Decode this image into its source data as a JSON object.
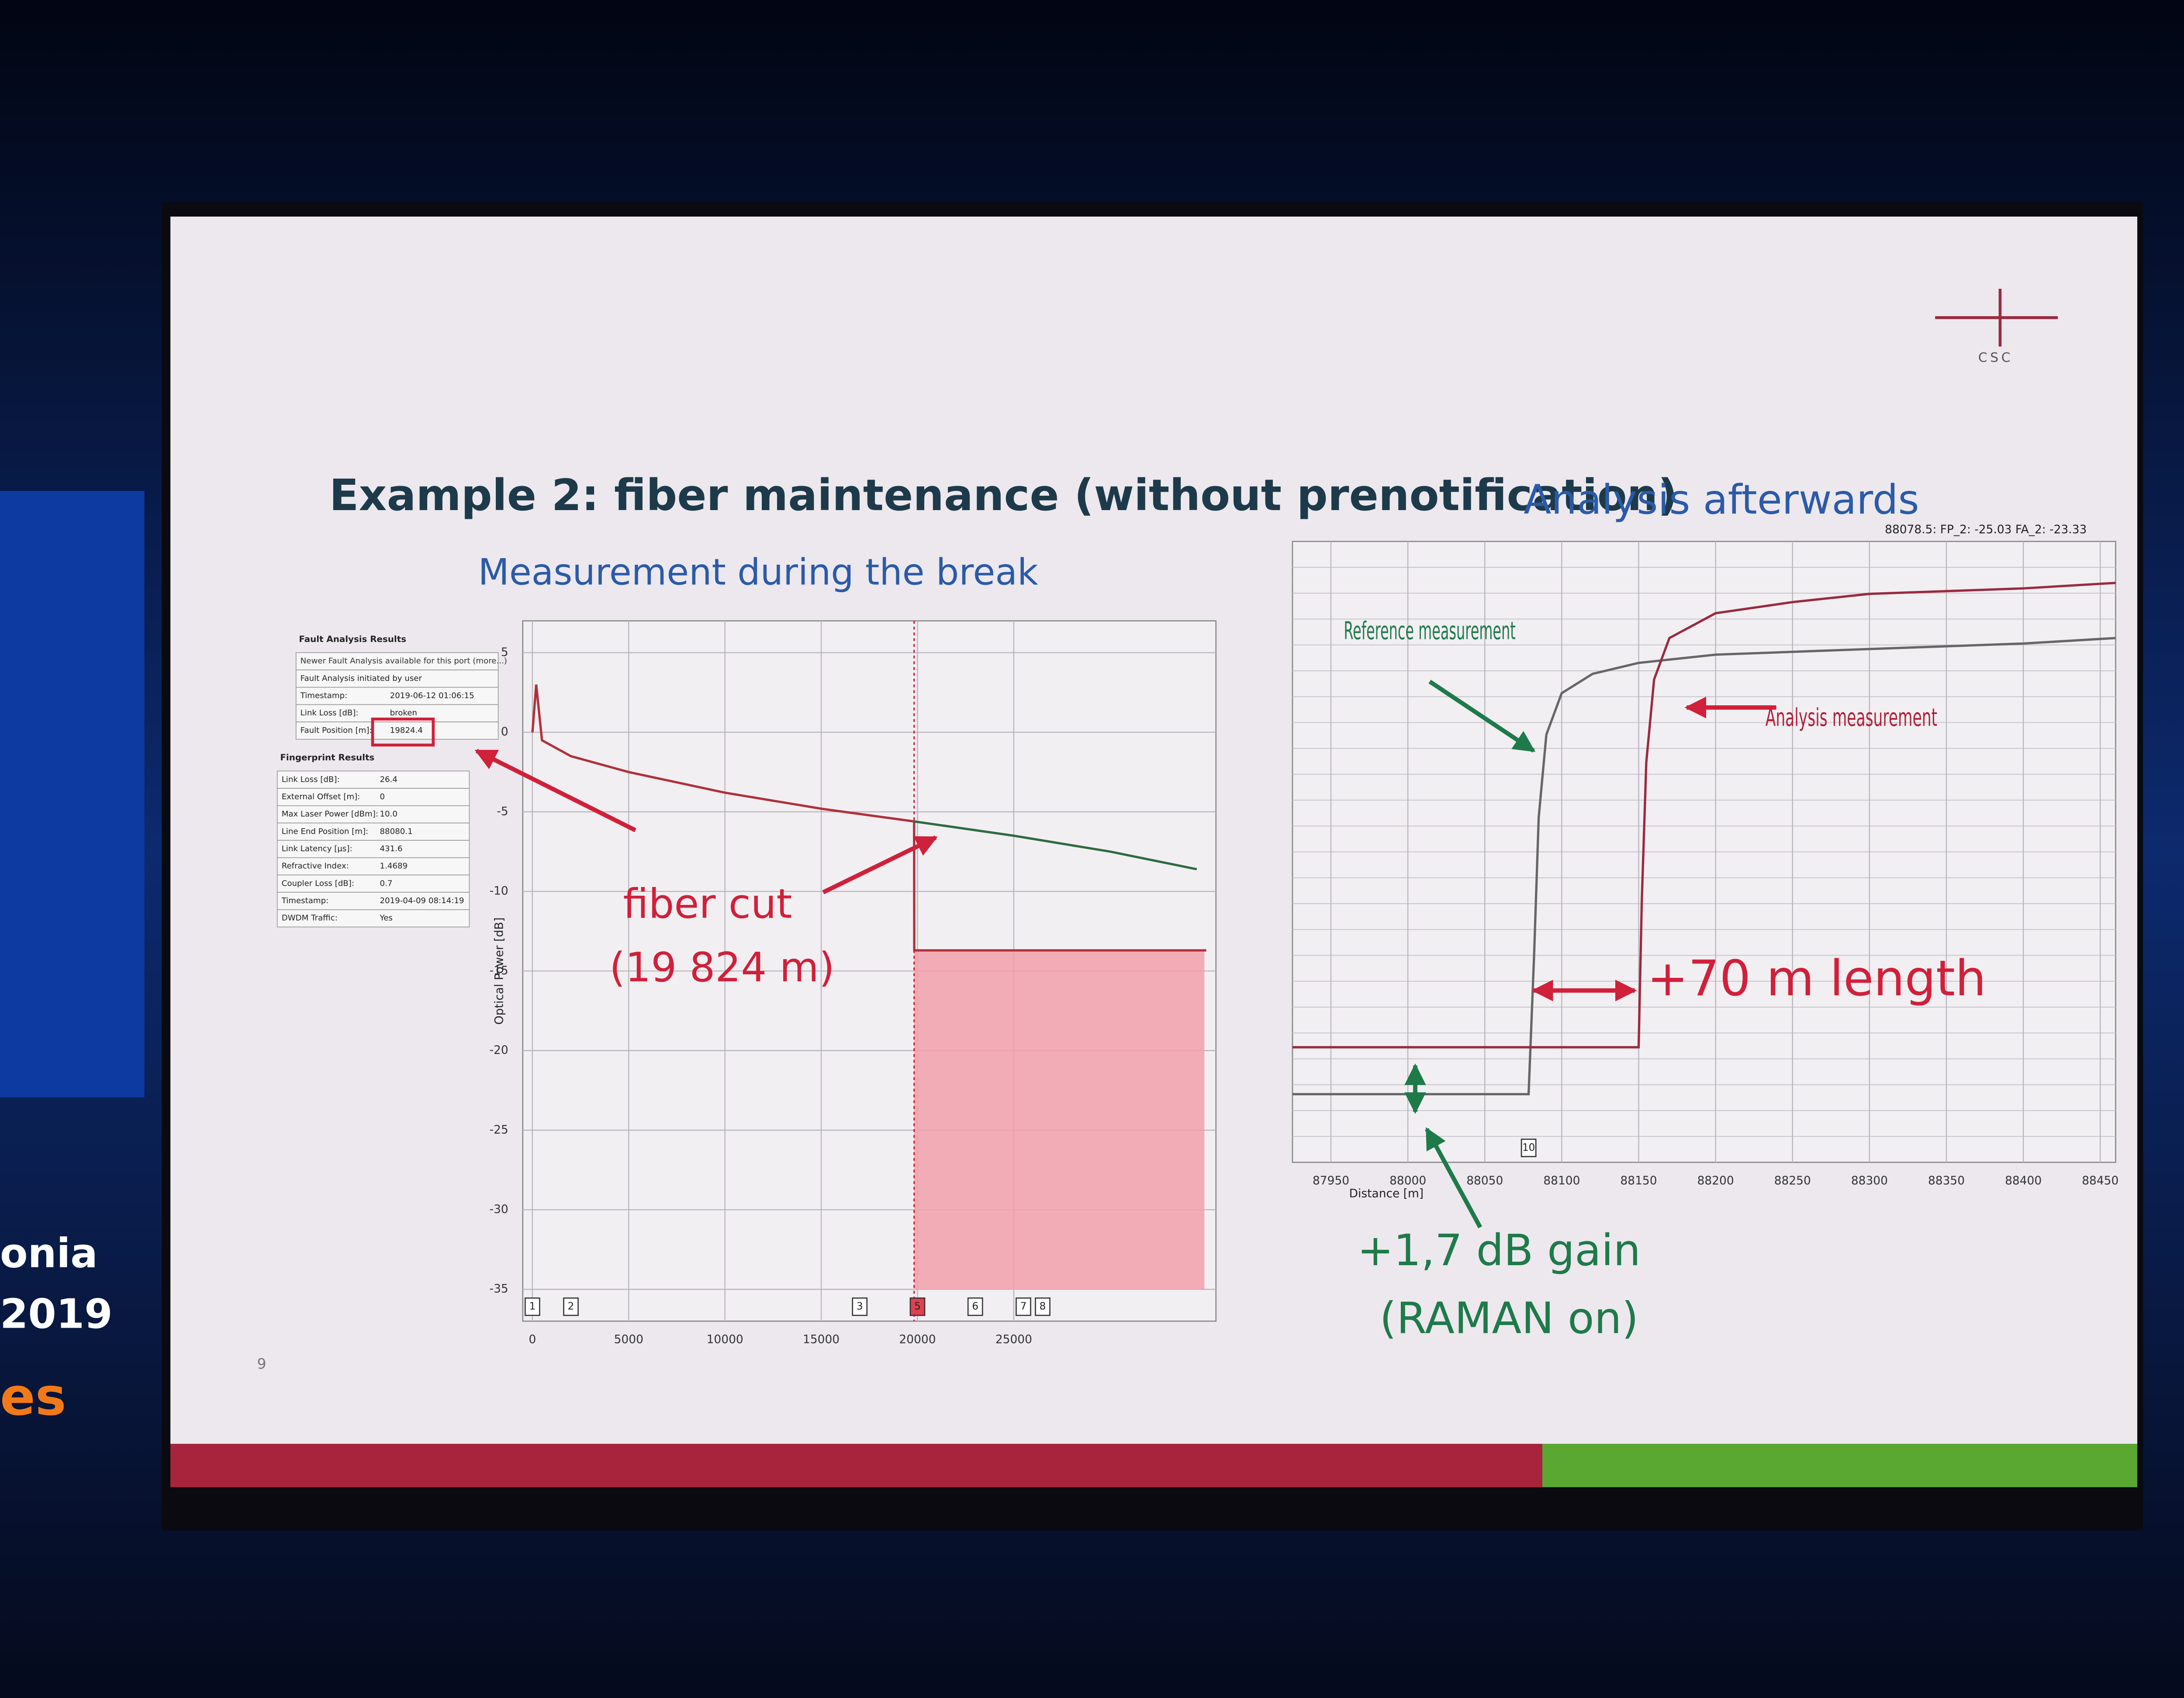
{
  "slide": {
    "title": "Example 2: fiber maintenance (without prenotification)",
    "logo": "CSC",
    "page_number": "9",
    "backdrop": [
      "onia",
      "2019",
      "es"
    ],
    "fault_table": {
      "title": "Fault Analysis Results",
      "rows": [
        [
          "Newer Fault Analysis available for this port (more...)"
        ],
        [
          "Fault Analysis initiated by user"
        ],
        [
          "Timestamp:",
          "2019-06-12 01:06:15"
        ],
        [
          "Link Loss [dB]:",
          "broken"
        ],
        [
          "Fault Position [m]:",
          "19824.4"
        ]
      ]
    },
    "fingerprint_table": {
      "title": "Fingerprint Results",
      "rows": [
        [
          "Link Loss [dB]:",
          "26.4"
        ],
        [
          "External Offset [m]:",
          "0"
        ],
        [
          "Max Laser Power [dBm]:",
          "10.0"
        ],
        [
          "Line End Position [m]:",
          "88080.1"
        ],
        [
          "Link Latency [µs]:",
          "431.6"
        ],
        [
          "Refractive Index:",
          "1.4689"
        ],
        [
          "Coupler Loss [dB]:",
          "0.7"
        ],
        [
          "Timestamp:",
          "2019-04-09 08:14:19"
        ],
        [
          "DWDM Traffic:",
          "Yes"
        ]
      ]
    }
  },
  "chart_data": [
    {
      "type": "line",
      "title": "Measurement during the break",
      "ylabel": "Optical Power [dB]",
      "xlim": [
        -500,
        35500
      ],
      "ylim": [
        -37,
        7
      ],
      "xticks": [
        0,
        5000,
        10000,
        15000,
        20000,
        25000
      ],
      "yticks": [
        5,
        0,
        -5,
        -10,
        -15,
        -20,
        -25,
        -30,
        -35
      ],
      "grid": true,
      "series": [
        {
          "color": "#b0303a",
          "x": [
            0,
            200,
            500,
            2000,
            5000,
            10000,
            15000,
            19824,
            19830,
            35000
          ],
          "values": [
            0,
            3,
            -0.5,
            -1.5,
            -2.5,
            -3.8,
            -4.8,
            -5.6,
            -13.7,
            -13.7
          ]
        },
        {
          "color": "#2e6b3f",
          "x": [
            19824,
            25000,
            30000,
            34500
          ],
          "values": [
            -5.6,
            -6.5,
            -7.5,
            -8.6
          ]
        }
      ],
      "events": {
        "x": [
          0,
          2000,
          17000,
          20000,
          23000,
          25500,
          26500
        ],
        "labels": [
          "1",
          "2",
          "3",
          "5",
          "6",
          "7",
          "8"
        ]
      },
      "annotations": [
        "fiber cut",
        "(19 824 m)"
      ]
    },
    {
      "type": "line",
      "title": "Analysis afterwards",
      "header": "88078.5: FP_2: -25.03 FA_2: -23.33",
      "xlabel": "Distance [m]",
      "xlim": [
        87925,
        88460
      ],
      "ylim": [
        -27.5,
        -5
      ],
      "xticks": [
        87950,
        88000,
        88050,
        88100,
        88150,
        88200,
        88250,
        88300,
        88350,
        88400,
        88450
      ],
      "grid": true,
      "series": [
        {
          "color": "#666666",
          "x": [
            87925,
            88000,
            88078.5,
            88082,
            88085,
            88090,
            88100,
            88120,
            88150,
            88200,
            88300,
            88400,
            88460
          ],
          "values": [
            -25.03,
            -25.03,
            -25.03,
            -20,
            -15,
            -12,
            -10.5,
            -9.8,
            -9.4,
            -9.1,
            -8.9,
            -8.7,
            -8.5
          ]
        },
        {
          "color": "#9a2a40",
          "x": [
            87925,
            88000,
            88078.5,
            88150,
            88152,
            88155,
            88160,
            88170,
            88200,
            88250,
            88300,
            88400,
            88460
          ],
          "values": [
            -23.33,
            -23.33,
            -23.33,
            -23.33,
            -18,
            -13,
            -10,
            -8.5,
            -7.6,
            -7.2,
            -6.9,
            -6.7,
            -6.5
          ]
        }
      ],
      "events": {
        "x": [
          88078.5
        ],
        "labels": [
          "10"
        ]
      },
      "annotations": [
        "Reference measurement",
        "Analysis measurement",
        "+70 m length",
        "+1,7 dB gain",
        "(RAMAN on)"
      ]
    }
  ]
}
